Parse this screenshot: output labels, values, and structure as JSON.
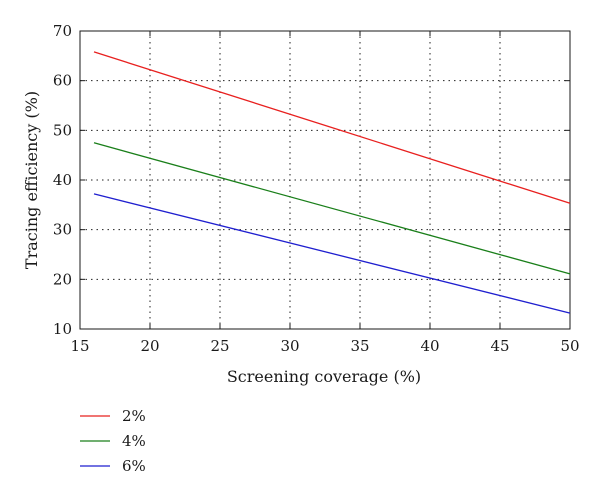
{
  "chart_data": {
    "type": "line",
    "title": "",
    "xlabel": "Screening coverage (%)",
    "ylabel": "Tracing efficiency (%)",
    "xlim": [
      15,
      50
    ],
    "ylim": [
      10,
      70
    ],
    "xticks": [
      15,
      20,
      25,
      30,
      35,
      40,
      45,
      50
    ],
    "yticks": [
      10,
      20,
      30,
      40,
      50,
      60,
      70
    ],
    "grid": true,
    "legend_position": "below",
    "series": [
      {
        "name": "2%",
        "color": "#e8201f",
        "x": [
          16,
          50
        ],
        "y": [
          65.8,
          35.3
        ]
      },
      {
        "name": "4%",
        "color": "#1a7f1a",
        "x": [
          16,
          50
        ],
        "y": [
          47.5,
          21.1
        ]
      },
      {
        "name": "6%",
        "color": "#1f1fcf",
        "x": [
          16,
          50
        ],
        "y": [
          37.2,
          13.2
        ]
      }
    ]
  }
}
